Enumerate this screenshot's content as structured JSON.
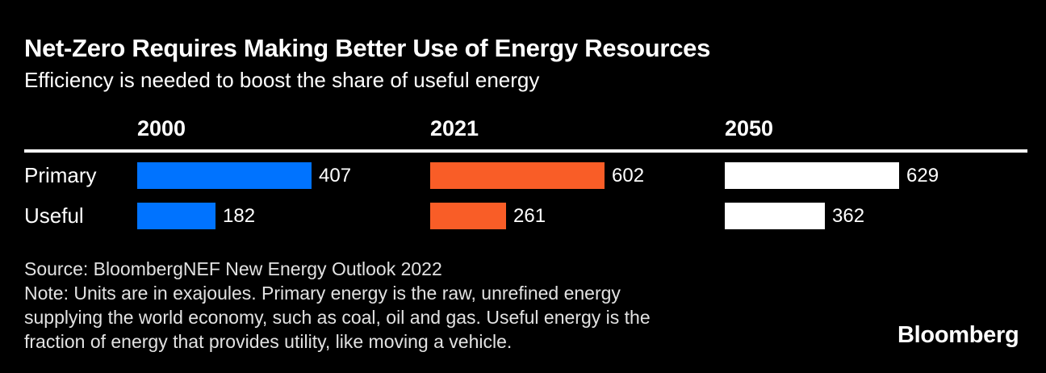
{
  "header": {
    "title": "Net-Zero Requires Making Better Use of Energy Resources",
    "subtitle": "Efficiency is needed to boost the share of useful energy"
  },
  "chart_data": {
    "type": "bar",
    "orientation": "horizontal",
    "title": "Net-Zero Requires Making Better Use of Energy Resources",
    "subtitle": "Efficiency is needed to boost the share of useful energy",
    "units": "exajoules",
    "columns": [
      {
        "label": "2000",
        "color": "#0073ff"
      },
      {
        "label": "2021",
        "color": "#f95d27"
      },
      {
        "label": "2050",
        "color": "#ffffff"
      }
    ],
    "rows": [
      {
        "label": "Primary",
        "values": [
          407,
          602,
          629
        ]
      },
      {
        "label": "Useful",
        "values": [
          182,
          261,
          362
        ]
      }
    ],
    "layout_hints": {
      "background": "#000000",
      "text_color": "#ffffff",
      "normalization": "per-column: Primary bar fills full track, Useful scaled by value/primary",
      "value_labels": "right of bar end",
      "grid": "none",
      "header_rule": true
    }
  },
  "footer": {
    "source": "Source: BloombergNEF New Energy Outlook 2022",
    "note_lines": [
      "Note: Units are in exajoules. Primary energy is the raw, unrefined energy",
      "supplying the world economy, such as coal, oil and gas. Useful energy is the",
      "fraction of energy that provides utility, like moving a vehicle."
    ]
  },
  "branding": {
    "logo": "Bloomberg"
  }
}
